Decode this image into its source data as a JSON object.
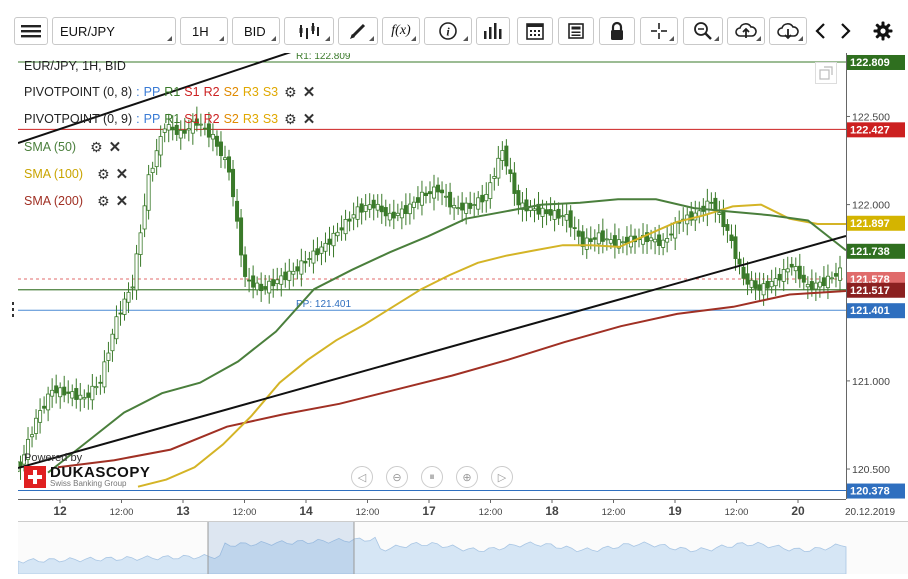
{
  "toolbar": {
    "menu_icon": "hamburger-menu-icon",
    "instrument": "EUR/JPY",
    "period": "1H",
    "offer_side": "BID",
    "icons": [
      "candle-type-icon",
      "drawing-tools-icon",
      "indicators-fx-icon",
      "info-icon",
      "volume-bars-icon",
      "calendar-icon",
      "news-icon",
      "lock-icon",
      "crosshair-icon",
      "zoom-icon",
      "upload-cloud-icon",
      "download-cloud-icon",
      "scroll-left-icon",
      "scroll-right-icon",
      "settings-gear-icon"
    ],
    "fx_label": "f(x)"
  },
  "legend": {
    "title": "EUR/JPY, 1H, BID",
    "pivot1": "PIVOTPOINT (0, 8)",
    "pivot2": "PIVOTPOINT (0, 9)",
    "pivot_parts": [
      "PP",
      "R1",
      "S1",
      "R2",
      "S2",
      "R3",
      "S3"
    ],
    "pivot_part_colors": [
      "#3a7bd5",
      "#3a7a2a",
      "#cc2222",
      "#cc2222",
      "#e08a00",
      "#e0a800",
      "#e0a800"
    ],
    "sma50": "SMA (50)",
    "sma100": "SMA (100)",
    "sma200": "SMA (200)"
  },
  "chart_labels": {
    "r1": "R1: 122.809",
    "pp": "PP: 121.401",
    "powered_by": "Powered by",
    "brand": "DUKASCOPY",
    "brand_sub": "Swiss Banking Group"
  },
  "price_axis": {
    "ticks": [
      "122.500",
      "122.000",
      "121.000",
      "120.500"
    ],
    "tags": [
      {
        "text": "122.809",
        "bg": "#2f6f1f"
      },
      {
        "text": "122.427",
        "bg": "#cc2020"
      },
      {
        "text": "121.897",
        "bg": "#d4b400"
      },
      {
        "text": "121.738",
        "bg": "#2f6f1f"
      },
      {
        "text": "121.578",
        "bg": "#e06b6b"
      },
      {
        "text": "121.517",
        "bg": "#8b2020"
      },
      {
        "text": "121.401",
        "bg": "#2f6fbf"
      },
      {
        "text": "120.378",
        "bg": "#2f6fbf"
      }
    ]
  },
  "date_axis": {
    "labels": [
      "12",
      "12:00",
      "13",
      "12:00",
      "14",
      "12:00",
      "17",
      "12:00",
      "18",
      "12:00",
      "19",
      "12:00",
      "20",
      "20.12.2019"
    ]
  },
  "colors": {
    "sma50": "#4a7f3c",
    "sma100": "#d4b426",
    "sma200": "#a03024",
    "trend": "#111111",
    "candle": "#3a7a2a"
  },
  "chart_data": {
    "type": "line",
    "x_labels": [
      "12",
      "12:00",
      "13",
      "12:00",
      "14",
      "12:00",
      "17",
      "12:00",
      "18",
      "12:00",
      "19",
      "12:00",
      "20"
    ],
    "ylim": [
      120.33,
      122.86
    ],
    "series": [
      {
        "name": "EUR/JPY",
        "values": [
          120.52,
          120.78,
          120.95,
          120.93,
          120.9,
          121.0,
          121.35,
          121.55,
          122.15,
          122.45,
          122.4,
          122.47,
          122.38,
          122.2,
          121.58,
          121.52,
          121.57,
          121.62,
          121.7,
          121.77,
          121.87,
          121.97,
          122.0,
          121.93,
          121.97,
          122.05,
          122.09,
          121.98,
          121.99,
          122.05,
          122.31,
          122.0,
          121.97,
          121.95,
          121.93,
          121.78,
          121.82,
          121.78,
          121.8,
          121.81,
          121.78,
          121.91,
          121.94,
          122.02,
          121.85,
          121.58,
          121.52,
          121.57,
          121.66,
          121.53,
          121.56,
          121.62
        ]
      },
      {
        "name": "SMA (50)",
        "values": [
          120.48,
          120.65,
          120.82,
          120.93,
          120.99,
          121.11,
          121.28,
          121.52,
          121.63,
          121.73,
          121.82,
          121.92,
          121.96,
          122.0,
          122.01,
          122.03,
          122.03,
          121.98,
          121.96,
          121.94,
          121.91,
          121.74
        ]
      },
      {
        "name": "SMA (100)",
        "values": [
          120.4,
          120.44,
          120.51,
          120.64,
          120.8,
          120.99,
          121.12,
          121.23,
          121.32,
          121.42,
          121.52,
          121.6,
          121.67,
          121.71,
          121.74,
          121.77,
          121.77,
          121.76,
          121.83,
          121.9,
          121.94,
          121.99,
          122.0,
          121.92,
          121.89,
          121.89
        ]
      },
      {
        "name": "SMA (200)",
        "values": [
          120.51,
          120.55,
          120.61,
          120.74,
          120.81,
          120.87,
          120.95,
          121.03,
          121.12,
          121.22,
          121.31,
          121.38,
          121.42,
          121.49,
          121.51
        ]
      },
      {
        "name": "PIVOTPOINT (0, 9)",
        "values": [
          121.401
        ]
      },
      {
        "name": "PIVOTPOINT (0, 8)",
        "values": [
          122.809
        ]
      }
    ]
  }
}
